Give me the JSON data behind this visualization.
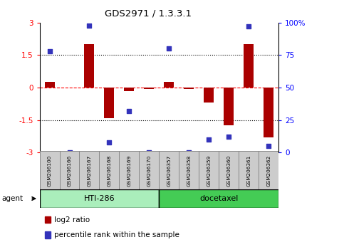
{
  "title": "GDS2971 / 1.3.3.1",
  "samples": [
    "GSM206100",
    "GSM206166",
    "GSM206167",
    "GSM206168",
    "GSM206169",
    "GSM206170",
    "GSM206357",
    "GSM206358",
    "GSM206359",
    "GSM206360",
    "GSM206361",
    "GSM206362"
  ],
  "log2_ratio": [
    0.25,
    0.0,
    2.0,
    -1.4,
    -0.15,
    -0.05,
    0.25,
    -0.05,
    -0.7,
    -1.75,
    2.0,
    -2.3
  ],
  "percentile_rank": [
    78,
    0,
    98,
    8,
    32,
    0,
    80,
    0,
    10,
    12,
    97,
    5
  ],
  "ylim_left": [
    -3,
    3
  ],
  "ylim_right": [
    0,
    100
  ],
  "yticks_left": [
    -3,
    -1.5,
    0,
    1.5,
    3
  ],
  "yticks_right": [
    0,
    25,
    50,
    75,
    100
  ],
  "ytick_labels_left": [
    "-3",
    "-1.5",
    "0",
    "1.5",
    "3"
  ],
  "ytick_labels_right": [
    "0",
    "25",
    "50",
    "75",
    "100%"
  ],
  "hti286_label": "HTI-286",
  "docetaxel_label": "docetaxel",
  "agent_label": "agent",
  "bar_color": "#aa0000",
  "dot_color": "#3333bb",
  "hti286_color": "#aaeebb",
  "docetaxel_color": "#44cc55",
  "label_bg_color": "#cccccc",
  "bg_color": "#ffffff",
  "bar_width": 0.5,
  "dot_size": 22,
  "legend_bar_label": "log2 ratio",
  "legend_dot_label": "percentile rank within the sample"
}
